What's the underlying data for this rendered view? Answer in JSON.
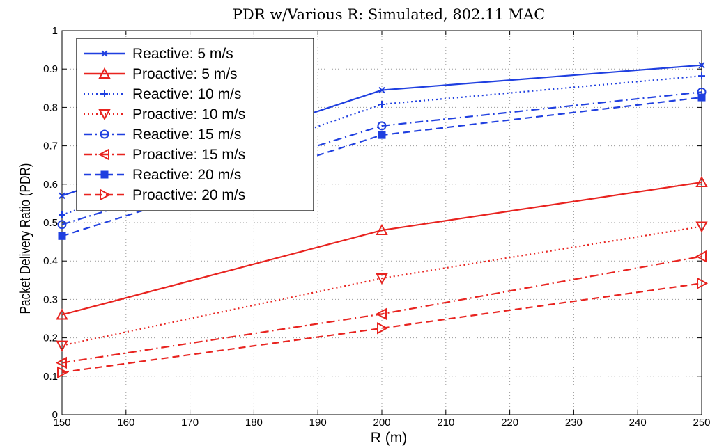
{
  "chart_data": {
    "type": "line",
    "title": "PDR w/Various R: Simulated, 802.11 MAC",
    "xlabel": "R (m)",
    "ylabel": "Packet Delivery Ratio (PDR)",
    "xlim": [
      150,
      250
    ],
    "ylim": [
      0,
      1
    ],
    "xticks": [
      150,
      160,
      170,
      180,
      190,
      200,
      210,
      220,
      230,
      240,
      250
    ],
    "yticks": [
      0,
      0.1,
      0.2,
      0.3,
      0.4,
      0.5,
      0.6,
      0.7,
      0.8,
      0.9,
      1
    ],
    "grid": true,
    "legend_position": "top-left",
    "x": [
      150,
      200,
      250
    ],
    "series": [
      {
        "name": "Reactive: 5 m/s",
        "values": [
          0.57,
          0.845,
          0.91
        ],
        "color": "#1f3fe0",
        "dash": "solid",
        "marker": "x"
      },
      {
        "name": "Proactive: 5 m/s",
        "values": [
          0.26,
          0.48,
          0.605
        ],
        "color": "#e8231f",
        "dash": "solid",
        "marker": "triangle-up"
      },
      {
        "name": "Reactive: 10 m/s",
        "values": [
          0.52,
          0.808,
          0.882
        ],
        "color": "#1f3fe0",
        "dash": "dotted",
        "marker": "plus"
      },
      {
        "name": "Proactive: 10 m/s",
        "values": [
          0.18,
          0.355,
          0.49
        ],
        "color": "#e8231f",
        "dash": "dotted",
        "marker": "triangle-down"
      },
      {
        "name": "Reactive: 15 m/s",
        "values": [
          0.495,
          0.752,
          0.84
        ],
        "color": "#1f3fe0",
        "dash": "dashdot",
        "marker": "circle"
      },
      {
        "name": "Proactive: 15 m/s",
        "values": [
          0.135,
          0.262,
          0.412
        ],
        "color": "#e8231f",
        "dash": "dashdot",
        "marker": "triangle-left"
      },
      {
        "name": "Reactive: 20 m/s",
        "values": [
          0.465,
          0.728,
          0.826
        ],
        "color": "#1f3fe0",
        "dash": "dashed",
        "marker": "square"
      },
      {
        "name": "Proactive: 20 m/s",
        "values": [
          0.11,
          0.225,
          0.342
        ],
        "color": "#e8231f",
        "dash": "dashed",
        "marker": "triangle-right"
      }
    ]
  }
}
